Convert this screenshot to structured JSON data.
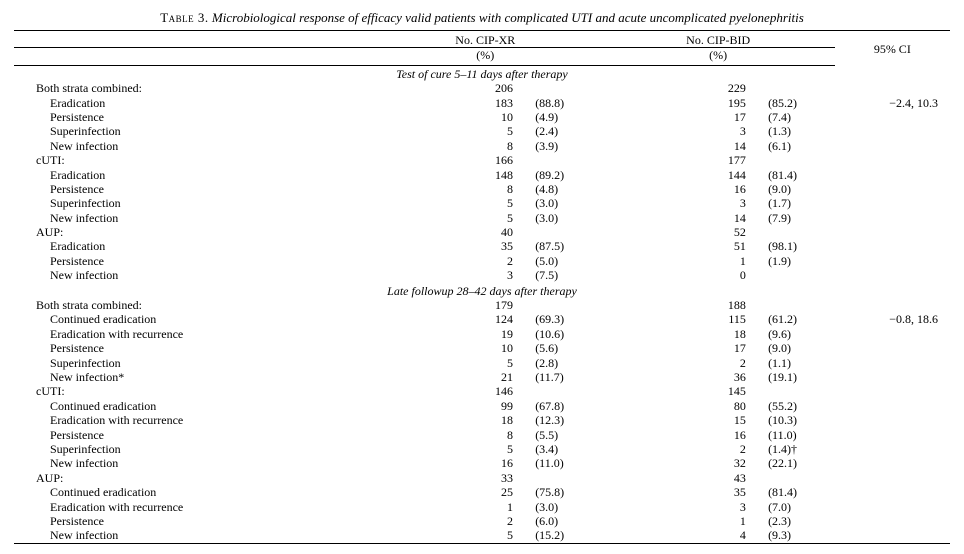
{
  "caption": {
    "number": "Table 3.",
    "text": "Microbiological response of efficacy valid patients with complicated UTI and acute uncomplicated pyelonephritis"
  },
  "headers": {
    "label": "",
    "cipxr": "No. CIP-XR",
    "cipxr_unit": "(%)",
    "cipbid": "No. CIP-BID",
    "cipbid_unit": "(%)",
    "ci": "95% CI"
  },
  "sections": [
    {
      "title": "Test of cure 5–11 days after therapy",
      "groups": [
        {
          "name": "Both strata combined:",
          "xr_n": "206",
          "bid_n": "229",
          "ci": "",
          "rows": [
            {
              "label": "Eradication",
              "xr_n": "183",
              "xr_pct": "(88.8)",
              "bid_n": "195",
              "bid_pct": "(85.2)",
              "ci": "−2.4, 10.3"
            },
            {
              "label": "Persistence",
              "xr_n": "10",
              "xr_pct": "(4.9)",
              "bid_n": "17",
              "bid_pct": "(7.4)",
              "ci": ""
            },
            {
              "label": "Superinfection",
              "xr_n": "5",
              "xr_pct": "(2.4)",
              "bid_n": "3",
              "bid_pct": "(1.3)",
              "ci": ""
            },
            {
              "label": "New infection",
              "xr_n": "8",
              "xr_pct": "(3.9)",
              "bid_n": "14",
              "bid_pct": "(6.1)",
              "ci": ""
            }
          ]
        },
        {
          "name": "cUTI:",
          "xr_n": "166",
          "bid_n": "177",
          "ci": "",
          "rows": [
            {
              "label": "Eradication",
              "xr_n": "148",
              "xr_pct": "(89.2)",
              "bid_n": "144",
              "bid_pct": "(81.4)",
              "ci": ""
            },
            {
              "label": "Persistence",
              "xr_n": "8",
              "xr_pct": "(4.8)",
              "bid_n": "16",
              "bid_pct": "(9.0)",
              "ci": ""
            },
            {
              "label": "Superinfection",
              "xr_n": "5",
              "xr_pct": "(3.0)",
              "bid_n": "3",
              "bid_pct": "(1.7)",
              "ci": ""
            },
            {
              "label": "New infection",
              "xr_n": "5",
              "xr_pct": "(3.0)",
              "bid_n": "14",
              "bid_pct": "(7.9)",
              "ci": ""
            }
          ]
        },
        {
          "name": "AUP:",
          "xr_n": "40",
          "bid_n": "52",
          "ci": "",
          "rows": [
            {
              "label": "Eradication",
              "xr_n": "35",
              "xr_pct": "(87.5)",
              "bid_n": "51",
              "bid_pct": "(98.1)",
              "ci": ""
            },
            {
              "label": "Persistence",
              "xr_n": "2",
              "xr_pct": "(5.0)",
              "bid_n": "1",
              "bid_pct": "(1.9)",
              "ci": ""
            },
            {
              "label": "New infection",
              "xr_n": "3",
              "xr_pct": "(7.5)",
              "bid_n": "0",
              "bid_pct": "",
              "ci": ""
            }
          ]
        }
      ]
    },
    {
      "title": "Late followup 28–42 days after therapy",
      "groups": [
        {
          "name": "Both strata combined:",
          "xr_n": "179",
          "bid_n": "188",
          "ci": "",
          "rows": [
            {
              "label": "Continued eradication",
              "xr_n": "124",
              "xr_pct": "(69.3)",
              "bid_n": "115",
              "bid_pct": "(61.2)",
              "ci": "−0.8, 18.6"
            },
            {
              "label": "Eradication with recurrence",
              "xr_n": "19",
              "xr_pct": "(10.6)",
              "bid_n": "18",
              "bid_pct": "(9.6)",
              "ci": ""
            },
            {
              "label": "Persistence",
              "xr_n": "10",
              "xr_pct": "(5.6)",
              "bid_n": "17",
              "bid_pct": "(9.0)",
              "ci": ""
            },
            {
              "label": "Superinfection",
              "xr_n": "5",
              "xr_pct": "(2.8)",
              "bid_n": "2",
              "bid_pct": "(1.1)",
              "ci": ""
            },
            {
              "label": "New infection*",
              "xr_n": "21",
              "xr_pct": "(11.7)",
              "bid_n": "36",
              "bid_pct": "(19.1)",
              "ci": ""
            }
          ]
        },
        {
          "name": "cUTI:",
          "xr_n": "146",
          "bid_n": "145",
          "ci": "",
          "rows": [
            {
              "label": "Continued eradication",
              "xr_n": "99",
              "xr_pct": "(67.8)",
              "bid_n": "80",
              "bid_pct": "(55.2)",
              "ci": ""
            },
            {
              "label": "Eradication with recurrence",
              "xr_n": "18",
              "xr_pct": "(12.3)",
              "bid_n": "15",
              "bid_pct": "(10.3)",
              "ci": ""
            },
            {
              "label": "Persistence",
              "xr_n": "8",
              "xr_pct": "(5.5)",
              "bid_n": "16",
              "bid_pct": "(11.0)",
              "ci": ""
            },
            {
              "label": "Superinfection",
              "xr_n": "5",
              "xr_pct": "(3.4)",
              "bid_n": "2",
              "bid_pct": "(1.4)†",
              "ci": ""
            },
            {
              "label": "New infection",
              "xr_n": "16",
              "xr_pct": "(11.0)",
              "bid_n": "32",
              "bid_pct": "(22.1)",
              "ci": ""
            }
          ]
        },
        {
          "name": "AUP:",
          "xr_n": "33",
          "bid_n": "43",
          "ci": "",
          "rows": [
            {
              "label": "Continued eradication",
              "xr_n": "25",
              "xr_pct": "(75.8)",
              "bid_n": "35",
              "bid_pct": "(81.4)",
              "ci": ""
            },
            {
              "label": "Eradication with recurrence",
              "xr_n": "1",
              "xr_pct": "(3.0)",
              "bid_n": "3",
              "bid_pct": "(7.0)",
              "ci": ""
            },
            {
              "label": "Persistence",
              "xr_n": "2",
              "xr_pct": "(6.0)",
              "bid_n": "1",
              "bid_pct": "(2.3)",
              "ci": ""
            },
            {
              "label": "New infection",
              "xr_n": "5",
              "xr_pct": "(15.2)",
              "bid_n": "4",
              "bid_pct": "(9.3)",
              "ci": ""
            }
          ]
        }
      ]
    }
  ]
}
